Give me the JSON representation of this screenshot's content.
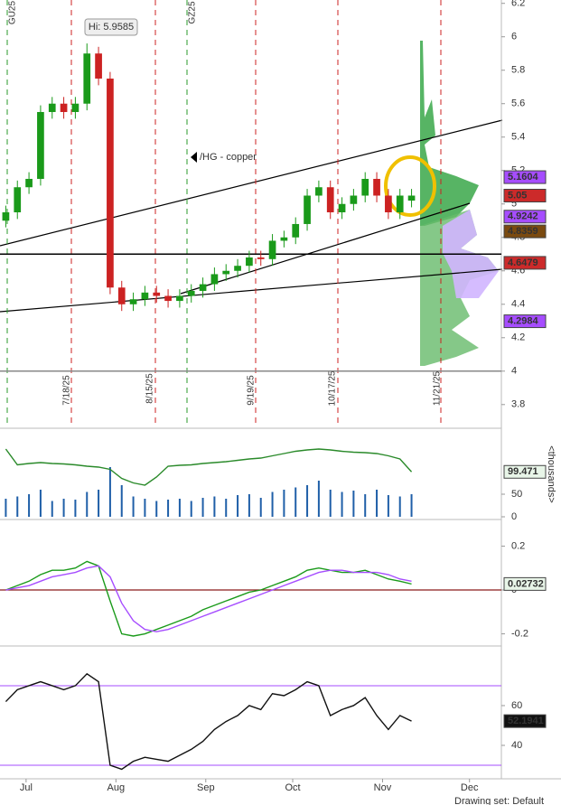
{
  "chart_data": [
    {
      "type": "candlestick",
      "x": [
        175,
        179,
        183,
        187,
        191,
        195,
        199,
        203,
        207,
        211,
        215,
        219,
        223,
        227,
        231,
        235,
        239,
        243,
        247,
        251,
        255,
        259,
        263,
        267,
        271,
        275,
        279,
        283,
        287,
        291,
        295,
        299,
        303,
        307,
        311,
        315
      ],
      "open": [
        4.9,
        4.95,
        5.1,
        5.15,
        5.55,
        5.6,
        5.55,
        5.6,
        5.9,
        5.75,
        4.5,
        4.4,
        4.43,
        4.47,
        4.45,
        4.42,
        4.45,
        4.48,
        4.52,
        4.58,
        4.6,
        4.63,
        4.68,
        4.67,
        4.78,
        4.8,
        4.88,
        5.05,
        5.1,
        4.95,
        5.0,
        5.05,
        5.15,
        5.05,
        4.95,
        5.02
      ],
      "high": [
        4.99,
        5.14,
        5.19,
        5.59,
        5.64,
        5.64,
        5.64,
        5.96,
        5.94,
        5.79,
        4.54,
        4.47,
        4.51,
        4.51,
        4.49,
        4.49,
        4.52,
        4.56,
        4.62,
        4.64,
        4.67,
        4.72,
        4.72,
        4.82,
        4.84,
        4.92,
        5.09,
        5.14,
        5.14,
        5.04,
        5.09,
        5.19,
        5.19,
        5.09,
        5.09,
        5.09
      ],
      "low": [
        4.86,
        4.91,
        5.06,
        5.11,
        5.51,
        5.51,
        5.51,
        5.56,
        5.71,
        4.46,
        4.36,
        4.36,
        4.39,
        4.41,
        4.38,
        4.38,
        4.41,
        4.44,
        4.48,
        4.54,
        4.56,
        4.59,
        4.63,
        4.63,
        4.74,
        4.76,
        4.84,
        5.01,
        4.91,
        4.91,
        4.96,
        5.01,
        5.01,
        4.91,
        4.91,
        4.98
      ],
      "close": [
        4.95,
        5.1,
        5.15,
        5.55,
        5.6,
        5.55,
        5.6,
        5.9,
        5.75,
        4.5,
        4.4,
        4.43,
        4.47,
        4.45,
        4.42,
        4.45,
        4.48,
        4.52,
        4.58,
        4.6,
        4.63,
        4.68,
        4.67,
        4.78,
        4.8,
        4.88,
        5.05,
        5.1,
        4.95,
        5.0,
        5.05,
        5.15,
        5.05,
        4.95,
        5.05,
        5.05
      ],
      "up_color": "#1a9a1a",
      "down_color": "#cc2222",
      "xlim": [
        173,
        346
      ],
      "ylim": [
        3.68,
        6.22
      ],
      "yticks": [
        3.8,
        4,
        4.2,
        4.4,
        4.6,
        4.8,
        5,
        5.2,
        5.4,
        5.6,
        5.8,
        6,
        6.2
      ],
      "hlines": [
        {
          "value": 4.7,
          "color": "#000000"
        },
        {
          "value": 4,
          "color": "#888888"
        }
      ],
      "markers": [
        {
          "value": 5.1604,
          "color": "#a64dff"
        },
        {
          "value": 5.05,
          "color": "#cc2a2a"
        },
        {
          "value": 4.9242,
          "color": "#a64dff"
        },
        {
          "value": 4.8359,
          "color": "#7a4a10"
        },
        {
          "value": 4.6479,
          "color": "#cc2a2a"
        },
        {
          "value": 4.2984,
          "color": "#a64dff"
        }
      ],
      "annotations": {
        "high": "Hi: 5.9585",
        "symbol": "/HG - copper"
      },
      "events": [
        "GU25",
        "7/18/25",
        "8/15/25",
        "GZ25",
        "9/19/25",
        "10/17/25",
        "11/21/25"
      ]
    },
    {
      "type": "bar",
      "x": [
        175,
        179,
        183,
        187,
        191,
        195,
        199,
        203,
        207,
        211,
        215,
        219,
        223,
        227,
        231,
        235,
        239,
        243,
        247,
        251,
        255,
        259,
        263,
        267,
        271,
        275,
        279,
        283,
        287,
        291,
        295,
        299,
        303,
        307,
        311,
        315
      ],
      "values": [
        40,
        45,
        50,
        60,
        35,
        40,
        38,
        55,
        60,
        110,
        70,
        45,
        40,
        35,
        38,
        40,
        35,
        42,
        45,
        40,
        48,
        50,
        42,
        55,
        60,
        65,
        70,
        80,
        60,
        55,
        58,
        50,
        60,
        48,
        45,
        50
      ],
      "color": "#1f5fa8",
      "line": {
        "color": "#2a8a2a",
        "values": [
          150,
          115,
          118,
          120,
          118,
          117,
          115,
          112,
          110,
          105,
          85,
          75,
          70,
          88,
          112,
          114,
          115,
          118,
          120,
          122,
          125,
          128,
          130,
          135,
          140,
          145,
          148,
          150,
          148,
          145,
          143,
          142,
          140,
          135,
          128,
          99.471
        ]
      },
      "xlim": [
        173,
        346
      ],
      "ylim": [
        0,
        188
      ],
      "yticks": [
        0,
        50
      ],
      "ylabel": "<thousands>"
    },
    {
      "type": "line",
      "x": [
        175,
        179,
        183,
        187,
        191,
        195,
        199,
        203,
        207,
        211,
        215,
        219,
        223,
        227,
        231,
        235,
        239,
        243,
        247,
        251,
        255,
        259,
        263,
        267,
        271,
        275,
        279,
        283,
        287,
        291,
        295,
        299,
        303,
        307,
        311,
        315
      ],
      "series": [
        {
          "color": "#1a9a1a",
          "values": [
            0.0,
            0.02,
            0.04,
            0.07,
            0.09,
            0.09,
            0.1,
            0.13,
            0.11,
            -0.05,
            -0.2,
            -0.21,
            -0.2,
            -0.18,
            -0.16,
            -0.14,
            -0.12,
            -0.09,
            -0.07,
            -0.05,
            -0.03,
            -0.01,
            0.0,
            0.02,
            0.04,
            0.06,
            0.09,
            0.1,
            0.09,
            0.08,
            0.08,
            0.09,
            0.07,
            0.05,
            0.04,
            0.02732
          ]
        },
        {
          "color": "#a64dff",
          "values": [
            0.0,
            0.01,
            0.02,
            0.04,
            0.06,
            0.07,
            0.08,
            0.1,
            0.11,
            0.06,
            -0.06,
            -0.14,
            -0.18,
            -0.19,
            -0.18,
            -0.16,
            -0.14,
            -0.12,
            -0.1,
            -0.08,
            -0.06,
            -0.04,
            -0.02,
            0.0,
            0.02,
            0.04,
            0.06,
            0.08,
            0.09,
            0.09,
            0.08,
            0.08,
            0.08,
            0.07,
            0.05,
            0.04
          ]
        }
      ],
      "xlim": [
        173,
        346
      ],
      "ylim": [
        -0.243,
        0.309
      ],
      "yticks": [
        -0.2,
        0,
        0.2
      ],
      "zero_line": "#8b1a1a"
    },
    {
      "type": "line",
      "x": [
        175,
        179,
        183,
        187,
        191,
        195,
        199,
        203,
        207,
        211,
        215,
        219,
        223,
        227,
        231,
        235,
        239,
        243,
        247,
        251,
        255,
        259,
        263,
        267,
        271,
        275,
        279,
        283,
        287,
        291,
        295,
        299,
        303,
        307,
        311,
        315
      ],
      "values": [
        62,
        68,
        70,
        72,
        70,
        68,
        70,
        76,
        72,
        30,
        28,
        32,
        34,
        33,
        32,
        35,
        38,
        42,
        48,
        52,
        55,
        60,
        58,
        66,
        65,
        68,
        72,
        70,
        55,
        58,
        60,
        64,
        55,
        48,
        55,
        52.1941
      ],
      "color": "#111111",
      "levels": [
        70,
        30
      ],
      "level_color": "#a64dff",
      "xlim": [
        173,
        346
      ],
      "ylim": [
        23.2,
        88.6
      ],
      "yticks": [
        40,
        60
      ],
      "xticks": [
        {
          "value": 182,
          "label": "Jul"
        },
        {
          "value": 213,
          "label": "Aug"
        },
        {
          "value": 244,
          "label": "Sep"
        },
        {
          "value": 274,
          "label": "Oct"
        },
        {
          "value": 305,
          "label": "Nov"
        },
        {
          "value": 335,
          "label": "Dec"
        }
      ]
    }
  ],
  "toolbar": {
    "drawing_set": "Drawing set: Default"
  }
}
